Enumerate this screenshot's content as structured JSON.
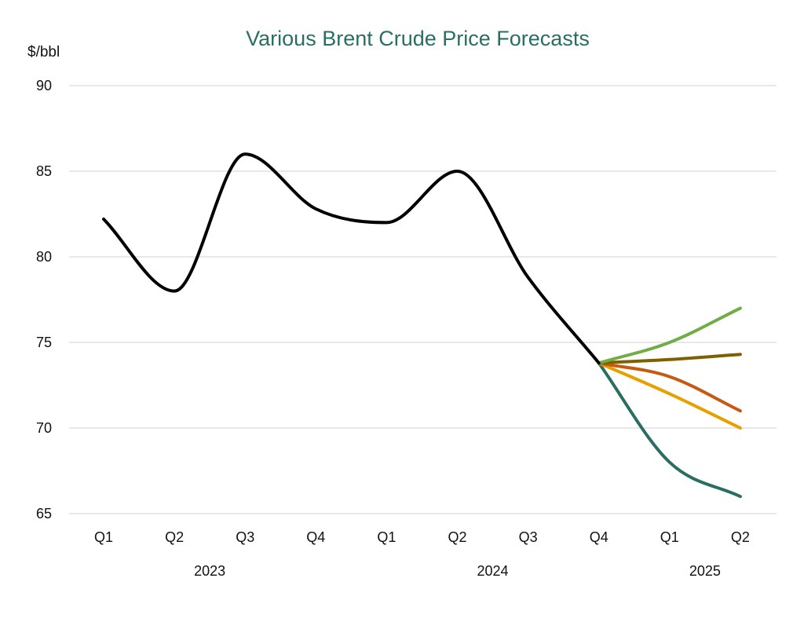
{
  "chart_data": {
    "type": "line",
    "title": "Various Brent Crude Price Forecasts",
    "ylabel": "$/bbl",
    "xlabel": "",
    "ylim": [
      65,
      90
    ],
    "yticks": [
      65,
      70,
      75,
      80,
      85,
      90
    ],
    "grid": true,
    "categories": [
      "Q1",
      "Q2",
      "Q3",
      "Q4",
      "Q1",
      "Q2",
      "Q3",
      "Q4",
      "Q1",
      "Q2"
    ],
    "year_labels": [
      {
        "label": "2023",
        "start": 0,
        "end": 3
      },
      {
        "label": "2024",
        "start": 4,
        "end": 7
      },
      {
        "label": "2025",
        "start": 8,
        "end": 9
      }
    ],
    "series": [
      {
        "color": "#000000",
        "values": [
          82.2,
          78.0,
          86.0,
          82.8,
          82.0,
          85.0,
          78.8,
          73.8,
          null,
          null
        ]
      },
      {
        "color": "#70ad47",
        "values": [
          null,
          null,
          null,
          null,
          null,
          null,
          null,
          73.8,
          75.0,
          77.0
        ]
      },
      {
        "color": "#7f6000",
        "values": [
          null,
          null,
          null,
          null,
          null,
          null,
          null,
          73.8,
          74.0,
          74.3
        ]
      },
      {
        "color": "#c55a11",
        "values": [
          null,
          null,
          null,
          null,
          null,
          null,
          null,
          73.8,
          73.0,
          71.0
        ]
      },
      {
        "color": "#e6a000",
        "values": [
          null,
          null,
          null,
          null,
          null,
          null,
          null,
          73.8,
          72.0,
          70.0
        ]
      },
      {
        "color": "#2a6e63",
        "values": [
          null,
          null,
          null,
          null,
          null,
          null,
          null,
          73.8,
          68.0,
          66.0
        ]
      }
    ],
    "title_color": "#2a6e63"
  }
}
